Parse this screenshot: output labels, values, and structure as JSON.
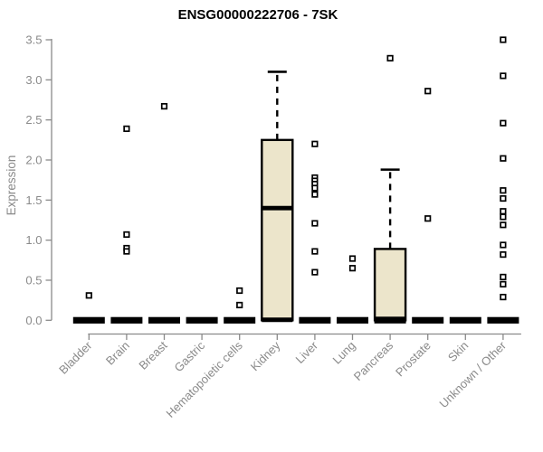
{
  "chart_title": "ENSG00000222706 - 7SK",
  "chart_data": {
    "type": "boxplot",
    "title": "ENSG00000222706 - 7SK",
    "xlabel": "",
    "ylabel": "Expression",
    "ylim": [
      0.0,
      3.5
    ],
    "yticks": [
      0.0,
      0.5,
      1.0,
      1.5,
      2.0,
      2.5,
      3.0,
      3.5
    ],
    "grid": false,
    "legend": "none",
    "categories": [
      "Bladder",
      "Brain",
      "Breast",
      "Gastric",
      "Hematopoietic cells",
      "Kidney",
      "Liver",
      "Lung",
      "Pancreas",
      "Prostate",
      "Skin",
      "Unknown / Other"
    ],
    "series": [
      {
        "category": "Bladder",
        "low": 0,
        "q1": 0,
        "median": 0,
        "q3": 0,
        "high": 0,
        "outliers": [
          0.31
        ]
      },
      {
        "category": "Brain",
        "low": 0,
        "q1": 0,
        "median": 0,
        "q3": 0,
        "high": 0,
        "outliers": [
          2.39,
          1.07,
          0.9,
          0.86
        ]
      },
      {
        "category": "Breast",
        "low": 0,
        "q1": 0,
        "median": 0,
        "q3": 0,
        "high": 0,
        "outliers": [
          2.67
        ]
      },
      {
        "category": "Gastric",
        "low": 0,
        "q1": 0,
        "median": 0,
        "q3": 0,
        "high": 0,
        "outliers": []
      },
      {
        "category": "Hematopoietic cells",
        "low": 0,
        "q1": 0,
        "median": 0,
        "q3": 0,
        "high": 0,
        "outliers": [
          0.37,
          0.19
        ]
      },
      {
        "category": "Kidney",
        "low": 0,
        "q1": 0,
        "median": 1.4,
        "q3": 2.25,
        "high": 3.1,
        "outliers": []
      },
      {
        "category": "Liver",
        "low": 0,
        "q1": 0,
        "median": 0,
        "q3": 0,
        "high": 0,
        "outliers": [
          2.2,
          1.78,
          1.74,
          1.7,
          1.65,
          1.57,
          1.21,
          0.86,
          0.6
        ]
      },
      {
        "category": "Lung",
        "low": 0,
        "q1": 0,
        "median": 0,
        "q3": 0,
        "high": 0,
        "outliers": [
          0.77,
          0.65
        ]
      },
      {
        "category": "Pancreas",
        "low": 0,
        "q1": 0,
        "median": 0,
        "q3": 0.89,
        "high": 1.88,
        "outliers": [
          3.27
        ]
      },
      {
        "category": "Prostate",
        "low": 0,
        "q1": 0,
        "median": 0,
        "q3": 0,
        "high": 0,
        "outliers": [
          2.86,
          1.27
        ]
      },
      {
        "category": "Skin",
        "low": 0,
        "q1": 0,
        "median": 0,
        "q3": 0,
        "high": 0,
        "outliers": []
      },
      {
        "category": "Unknown / Other",
        "low": 0,
        "q1": 0,
        "median": 0,
        "q3": 0,
        "high": 0,
        "outliers": [
          3.5,
          3.05,
          2.46,
          2.02,
          1.62,
          1.52,
          1.36,
          1.29,
          1.19,
          0.94,
          0.82,
          0.54,
          0.45,
          0.29
        ]
      }
    ]
  },
  "colors": {
    "background": "#ffffff",
    "box_fill": "#ece5cb",
    "box_stroke": "#000000",
    "median": "#000000",
    "outlier_fill": "#ffffff",
    "outlier_stroke": "#000000",
    "axis": "#8a8a8a",
    "tick_text": "#8a8a8a",
    "title_text": "#000000"
  }
}
